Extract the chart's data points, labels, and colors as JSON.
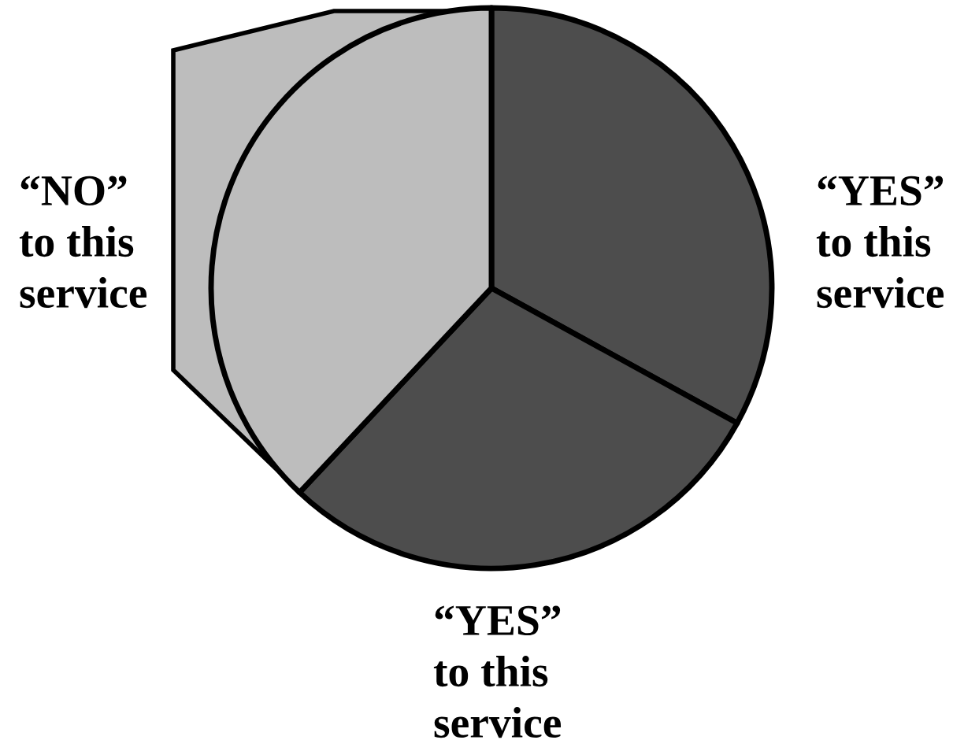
{
  "chart_data": {
    "type": "pie",
    "categories": [
      "“YES”\nto this\nservice",
      "“YES”\nto this\nservice",
      "“NO”\nto this\nservice"
    ],
    "values": [
      33,
      29,
      38
    ],
    "colors": [
      "#4d4d4d",
      "#4d4d4d",
      "#bdbdbd"
    ]
  }
}
